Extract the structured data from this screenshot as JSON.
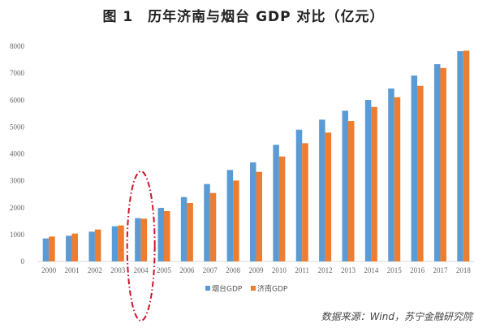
{
  "title": "图 1　历年济南与烟台 GDP 对比（亿元）",
  "source": "数据来源：Wind，苏宁金融研究院",
  "chart_data": {
    "type": "bar",
    "title": "图 1　历年济南与烟台 GDP 对比（亿元）",
    "xlabel": "",
    "ylabel": "",
    "ylim": [
      0,
      8000
    ],
    "yticks": [
      0,
      1000,
      2000,
      3000,
      4000,
      5000,
      6000,
      7000,
      8000
    ],
    "grid": false,
    "legend_position": "bottom",
    "categories": [
      "2000",
      "2001",
      "2002",
      "2003",
      "2004",
      "2005",
      "2006",
      "2007",
      "2008",
      "2009",
      "2010",
      "2011",
      "2012",
      "2013",
      "2014",
      "2015",
      "2016",
      "2017",
      "2018"
    ],
    "series": [
      {
        "name": "烟台GDP",
        "color": "#5B9BD5",
        "values": [
          855,
          955,
          1107,
          1308,
          1610,
          1992,
          2394,
          2877,
          3400,
          3682,
          4336,
          4899,
          5272,
          5604,
          6006,
          6429,
          6911,
          7334,
          7817
        ]
      },
      {
        "name": "济南GDP",
        "color": "#ED7D31",
        "values": [
          925,
          1036,
          1187,
          1338,
          1590,
          1871,
          2173,
          2545,
          3008,
          3330,
          3903,
          4396,
          4789,
          5221,
          5744,
          6107,
          6529,
          7193,
          7837
        ]
      }
    ],
    "annotations": [
      {
        "type": "ellipse-highlight",
        "category": "2004",
        "color": "#D0112B"
      }
    ]
  }
}
